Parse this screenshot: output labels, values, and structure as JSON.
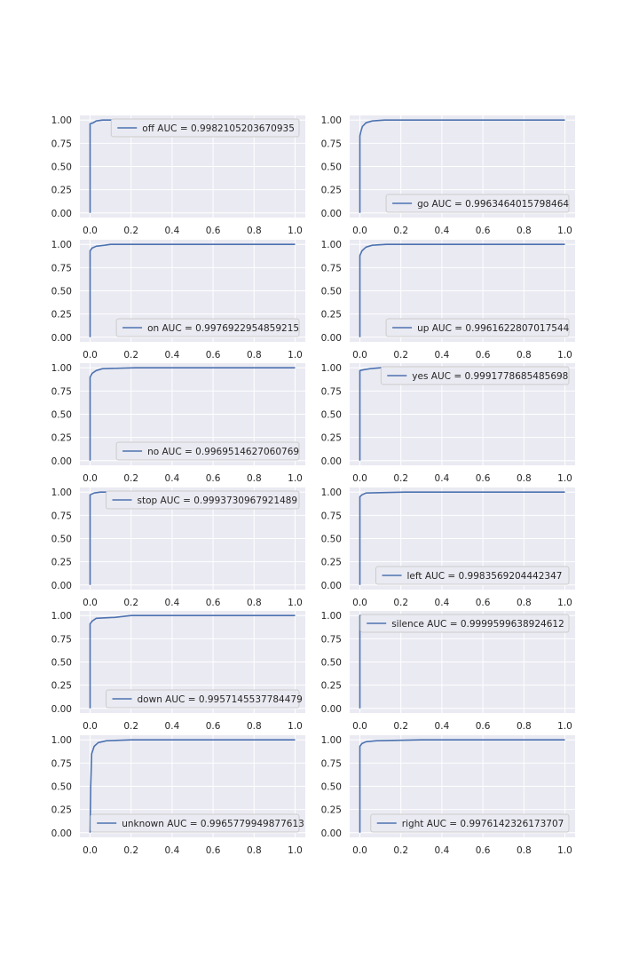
{
  "chart_data": [
    {
      "type": "line",
      "series": [
        {
          "name": "off AUC = 0.9982105203670935",
          "curve": [
            [
              0,
              0
            ],
            [
              0,
              0.96
            ],
            [
              0.015,
              0.97
            ],
            [
              0.03,
              0.99
            ],
            [
              0.06,
              1.0
            ],
            [
              1.0,
              1.0
            ]
          ]
        }
      ],
      "xlim": [
        0,
        1
      ],
      "ylim": [
        0,
        1
      ],
      "xticks": [
        "0.0",
        "0.2",
        "0.4",
        "0.6",
        "0.8",
        "1.0"
      ],
      "yticks": [
        "0.00",
        "0.25",
        "0.50",
        "0.75",
        "1.00"
      ],
      "grid": true,
      "legend": "upper-right"
    },
    {
      "type": "line",
      "series": [
        {
          "name": "go AUC = 0.9963464015798464",
          "curve": [
            [
              0,
              0
            ],
            [
              0,
              0.83
            ],
            [
              0.005,
              0.88
            ],
            [
              0.012,
              0.93
            ],
            [
              0.03,
              0.97
            ],
            [
              0.06,
              0.99
            ],
            [
              0.12,
              1.0
            ],
            [
              1.0,
              1.0
            ]
          ]
        }
      ],
      "xlim": [
        0,
        1
      ],
      "ylim": [
        0,
        1
      ],
      "xticks": [
        "0.0",
        "0.2",
        "0.4",
        "0.6",
        "0.8",
        "1.0"
      ],
      "yticks": [
        "0.00",
        "0.25",
        "0.50",
        "0.75",
        "1.00"
      ],
      "grid": true,
      "legend": "lower-right"
    },
    {
      "type": "line",
      "series": [
        {
          "name": "on AUC = 0.9976922954859215",
          "curve": [
            [
              0,
              0
            ],
            [
              0,
              0.93
            ],
            [
              0.01,
              0.96
            ],
            [
              0.03,
              0.98
            ],
            [
              0.07,
              0.99
            ],
            [
              0.1,
              1.0
            ],
            [
              1.0,
              1.0
            ]
          ]
        }
      ],
      "xlim": [
        0,
        1
      ],
      "ylim": [
        0,
        1
      ],
      "xticks": [
        "0.0",
        "0.2",
        "0.4",
        "0.6",
        "0.8",
        "1.0"
      ],
      "yticks": [
        "0.00",
        "0.25",
        "0.50",
        "0.75",
        "1.00"
      ],
      "grid": true,
      "legend": "lower-right"
    },
    {
      "type": "line",
      "series": [
        {
          "name": "up AUC = 0.9961622807017544",
          "curve": [
            [
              0,
              0
            ],
            [
              0,
              0.88
            ],
            [
              0.01,
              0.93
            ],
            [
              0.03,
              0.97
            ],
            [
              0.06,
              0.99
            ],
            [
              0.13,
              1.0
            ],
            [
              1.0,
              1.0
            ]
          ]
        }
      ],
      "xlim": [
        0,
        1
      ],
      "ylim": [
        0,
        1
      ],
      "xticks": [
        "0.0",
        "0.2",
        "0.4",
        "0.6",
        "0.8",
        "1.0"
      ],
      "yticks": [
        "0.00",
        "0.25",
        "0.50",
        "0.75",
        "1.00"
      ],
      "grid": true,
      "legend": "lower-right"
    },
    {
      "type": "line",
      "series": [
        {
          "name": "no AUC = 0.9969514627060769",
          "curve": [
            [
              0,
              0
            ],
            [
              0,
              0.9
            ],
            [
              0.01,
              0.94
            ],
            [
              0.03,
              0.97
            ],
            [
              0.06,
              0.99
            ],
            [
              0.22,
              1.0
            ],
            [
              1.0,
              1.0
            ]
          ]
        }
      ],
      "xlim": [
        0,
        1
      ],
      "ylim": [
        0,
        1
      ],
      "xticks": [
        "0.0",
        "0.2",
        "0.4",
        "0.6",
        "0.8",
        "1.0"
      ],
      "yticks": [
        "0.00",
        "0.25",
        "0.50",
        "0.75",
        "1.00"
      ],
      "grid": true,
      "legend": "lower-right"
    },
    {
      "type": "line",
      "series": [
        {
          "name": "yes AUC = 0.9991778685485698",
          "curve": [
            [
              0,
              0
            ],
            [
              0,
              0.97
            ],
            [
              0.02,
              0.98
            ],
            [
              0.05,
              0.99
            ],
            [
              0.1,
              1.0
            ],
            [
              1.0,
              1.0
            ]
          ]
        }
      ],
      "xlim": [
        0,
        1
      ],
      "ylim": [
        0,
        1
      ],
      "xticks": [
        "0.0",
        "0.2",
        "0.4",
        "0.6",
        "0.8",
        "1.0"
      ],
      "yticks": [
        "0.00",
        "0.25",
        "0.50",
        "0.75",
        "1.00"
      ],
      "grid": true,
      "legend": "upper-right"
    },
    {
      "type": "line",
      "series": [
        {
          "name": "stop AUC = 0.9993730967921489",
          "curve": [
            [
              0,
              0
            ],
            [
              0,
              0.97
            ],
            [
              0.02,
              0.99
            ],
            [
              0.05,
              1.0
            ],
            [
              1.0,
              1.0
            ]
          ]
        }
      ],
      "xlim": [
        0,
        1
      ],
      "ylim": [
        0,
        1
      ],
      "xticks": [
        "0.0",
        "0.2",
        "0.4",
        "0.6",
        "0.8",
        "1.0"
      ],
      "yticks": [
        "0.00",
        "0.25",
        "0.50",
        "0.75",
        "1.00"
      ],
      "grid": true,
      "legend": "upper-right"
    },
    {
      "type": "line",
      "series": [
        {
          "name": "left AUC = 0.9983569204442347",
          "curve": [
            [
              0,
              0
            ],
            [
              0,
              0.95
            ],
            [
              0.01,
              0.97
            ],
            [
              0.03,
              0.99
            ],
            [
              0.22,
              1.0
            ],
            [
              1.0,
              1.0
            ]
          ]
        }
      ],
      "xlim": [
        0,
        1
      ],
      "ylim": [
        0,
        1
      ],
      "xticks": [
        "0.0",
        "0.2",
        "0.4",
        "0.6",
        "0.8",
        "1.0"
      ],
      "yticks": [
        "0.00",
        "0.25",
        "0.50",
        "0.75",
        "1.00"
      ],
      "grid": true,
      "legend": "lower-right"
    },
    {
      "type": "line",
      "series": [
        {
          "name": "down AUC = 0.9957145537784479",
          "curve": [
            [
              0,
              0
            ],
            [
              0,
              0.91
            ],
            [
              0.01,
              0.94
            ],
            [
              0.03,
              0.97
            ],
            [
              0.12,
              0.98
            ],
            [
              0.2,
              1.0
            ],
            [
              1.0,
              1.0
            ]
          ]
        }
      ],
      "xlim": [
        0,
        1
      ],
      "ylim": [
        0,
        1
      ],
      "xticks": [
        "0.0",
        "0.2",
        "0.4",
        "0.6",
        "0.8",
        "1.0"
      ],
      "yticks": [
        "0.00",
        "0.25",
        "0.50",
        "0.75",
        "1.00"
      ],
      "grid": true,
      "legend": "lower-right"
    },
    {
      "type": "line",
      "series": [
        {
          "name": "silence AUC = 0.9999599638924612",
          "curve": [
            [
              0,
              0
            ],
            [
              0,
              1.0
            ],
            [
              1.0,
              1.0
            ]
          ]
        }
      ],
      "xlim": [
        0,
        1
      ],
      "ylim": [
        0,
        1
      ],
      "xticks": [
        "0.0",
        "0.2",
        "0.4",
        "0.6",
        "0.8",
        "1.0"
      ],
      "yticks": [
        "0.00",
        "0.25",
        "0.50",
        "0.75",
        "1.00"
      ],
      "grid": true,
      "legend": "upper-right"
    },
    {
      "type": "line",
      "series": [
        {
          "name": "unknown AUC = 0.9965779949877613",
          "curve": [
            [
              0,
              0
            ],
            [
              0.003,
              0.5
            ],
            [
              0.008,
              0.85
            ],
            [
              0.02,
              0.93
            ],
            [
              0.04,
              0.97
            ],
            [
              0.08,
              0.99
            ],
            [
              0.2,
              1.0
            ],
            [
              1.0,
              1.0
            ]
          ]
        }
      ],
      "xlim": [
        0,
        1
      ],
      "ylim": [
        0,
        1
      ],
      "xticks": [
        "0.0",
        "0.2",
        "0.4",
        "0.6",
        "0.8",
        "1.0"
      ],
      "yticks": [
        "0.00",
        "0.25",
        "0.50",
        "0.75",
        "1.00"
      ],
      "grid": true,
      "legend": "lower-right"
    },
    {
      "type": "line",
      "series": [
        {
          "name": "right AUC = 0.9976142326173707",
          "curve": [
            [
              0,
              0
            ],
            [
              0,
              0.93
            ],
            [
              0.01,
              0.96
            ],
            [
              0.03,
              0.98
            ],
            [
              0.08,
              0.99
            ],
            [
              0.3,
              1.0
            ],
            [
              1.0,
              1.0
            ]
          ]
        }
      ],
      "xlim": [
        0,
        1
      ],
      "ylim": [
        0,
        1
      ],
      "xticks": [
        "0.0",
        "0.2",
        "0.4",
        "0.6",
        "0.8",
        "1.0"
      ],
      "yticks": [
        "0.00",
        "0.25",
        "0.50",
        "0.75",
        "1.00"
      ],
      "grid": true,
      "legend": "lower-right"
    }
  ],
  "colors": {
    "axes_bg": "#EAEAF2",
    "grid": "#FFFFFF",
    "line": "#4C72B0",
    "text": "#262626",
    "legend_bg": "#EAEAF2",
    "legend_border": "#CCCCCC"
  }
}
